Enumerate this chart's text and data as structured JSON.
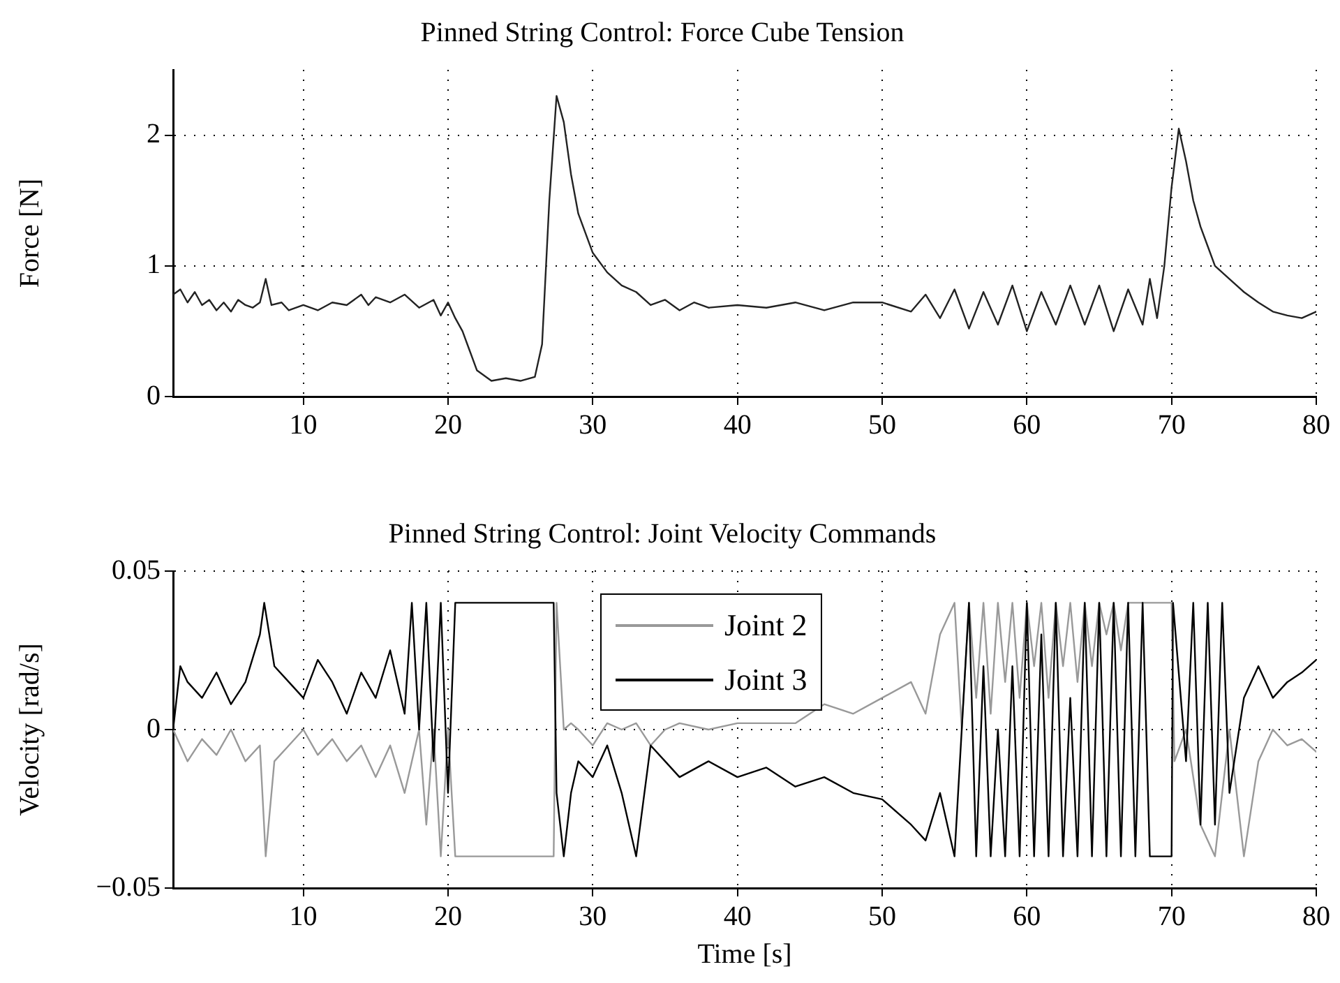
{
  "chart_data": [
    {
      "type": "line",
      "title": "Pinned String Control: Force Cube Tension",
      "ylabel": "Force [N]",
      "xlim": [
        1,
        80
      ],
      "xticks": [
        10,
        20,
        30,
        40,
        50,
        60,
        70,
        80
      ],
      "ylim": [
        0,
        2.5
      ],
      "yticks": [
        0,
        1,
        2
      ],
      "grid": true,
      "legend": false,
      "marker": "none",
      "line_style": "solid",
      "series": [
        {
          "color": "#222222",
          "x": [
            1,
            1.5,
            2,
            2.5,
            3,
            3.5,
            4,
            4.5,
            5,
            5.5,
            6,
            6.5,
            7,
            7.4,
            7.8,
            8.5,
            9,
            10,
            11,
            12,
            13,
            14,
            14.5,
            15,
            16,
            17,
            18,
            19,
            19.5,
            20,
            20.5,
            21,
            21.5,
            22,
            23,
            24,
            25,
            26,
            26.5,
            27,
            27.5,
            28,
            28.5,
            29,
            30,
            31,
            32,
            33,
            34,
            35,
            36,
            37,
            38,
            40,
            42,
            44,
            46,
            48,
            50,
            52,
            53,
            54,
            55,
            56,
            57,
            58,
            59,
            60,
            61,
            62,
            63,
            64,
            65,
            66,
            67,
            68,
            68.5,
            69,
            69.5,
            70,
            70.5,
            71,
            71.5,
            72,
            72.5,
            73,
            74,
            75,
            76,
            77,
            78,
            79,
            80
          ],
          "values": [
            0.78,
            0.82,
            0.72,
            0.8,
            0.7,
            0.74,
            0.66,
            0.72,
            0.65,
            0.74,
            0.7,
            0.68,
            0.72,
            0.9,
            0.7,
            0.72,
            0.66,
            0.7,
            0.66,
            0.72,
            0.7,
            0.78,
            0.7,
            0.76,
            0.72,
            0.78,
            0.68,
            0.74,
            0.62,
            0.72,
            0.6,
            0.5,
            0.35,
            0.2,
            0.12,
            0.14,
            0.12,
            0.15,
            0.4,
            1.5,
            2.3,
            2.1,
            1.7,
            1.4,
            1.1,
            0.95,
            0.85,
            0.8,
            0.7,
            0.74,
            0.66,
            0.72,
            0.68,
            0.7,
            0.68,
            0.72,
            0.66,
            0.72,
            0.72,
            0.65,
            0.78,
            0.6,
            0.82,
            0.52,
            0.8,
            0.55,
            0.85,
            0.5,
            0.8,
            0.55,
            0.85,
            0.55,
            0.85,
            0.5,
            0.82,
            0.55,
            0.9,
            0.6,
            1.0,
            1.6,
            2.05,
            1.8,
            1.5,
            1.3,
            1.15,
            1.0,
            0.9,
            0.8,
            0.72,
            0.65,
            0.62,
            0.6,
            0.65
          ]
        }
      ]
    },
    {
      "type": "line",
      "title": "Pinned String Control: Joint Velocity Commands",
      "xlabel": "Time [s]",
      "ylabel": "Velocity [rad/s]",
      "xlim": [
        1,
        80
      ],
      "xticks": [
        10,
        20,
        30,
        40,
        50,
        60,
        70,
        80
      ],
      "ylim": [
        -0.05,
        0.05
      ],
      "yticks": [
        {
          "value": -0.05,
          "label": "−0.05"
        },
        0,
        0.05
      ],
      "grid": true,
      "legend": "top",
      "marker": "none",
      "line_style": "solid",
      "series": [
        {
          "name": "Joint 2",
          "color": "#999999",
          "x": [
            1,
            2,
            3,
            4,
            5,
            6,
            7,
            7.4,
            8,
            9,
            10,
            11,
            12,
            13,
            14,
            15,
            16,
            17,
            18,
            18.5,
            19,
            19.5,
            20,
            20.5,
            21,
            27.3,
            27.5,
            28,
            28.5,
            29,
            30,
            31,
            32,
            33,
            34,
            35,
            36,
            38,
            40,
            42,
            44,
            46,
            48,
            50,
            52,
            53,
            54,
            55,
            55.5,
            56,
            56.5,
            57,
            57.5,
            58,
            58.5,
            59,
            59.5,
            60,
            60.5,
            61,
            61.5,
            62,
            62.5,
            63,
            63.5,
            64,
            64.5,
            65,
            65.5,
            66,
            66.5,
            67,
            70,
            70.2,
            71,
            72,
            73,
            74,
            75,
            76,
            77,
            78,
            79,
            80
          ],
          "values": [
            0,
            -0.01,
            -0.003,
            -0.008,
            0,
            -0.01,
            -0.005,
            -0.04,
            -0.01,
            -0.005,
            0,
            -0.008,
            -0.003,
            -0.01,
            -0.005,
            -0.015,
            -0.005,
            -0.02,
            0,
            -0.03,
            0,
            -0.04,
            0,
            -0.04,
            -0.04,
            -0.04,
            0.04,
            0,
            0.002,
            0,
            -0.005,
            0.002,
            0,
            0.002,
            -0.005,
            0,
            0.002,
            0,
            0.002,
            0.002,
            0.002,
            0.008,
            0.005,
            0.01,
            0.015,
            0.005,
            0.03,
            0.04,
            0,
            0.04,
            0.01,
            0.04,
            0.005,
            0.04,
            0.015,
            0.04,
            0.01,
            0.04,
            0.02,
            0.04,
            0.01,
            0.04,
            0.02,
            0.04,
            0.015,
            0.04,
            0.02,
            0.04,
            0.03,
            0.04,
            0.025,
            0.04,
            0.04,
            -0.01,
            0,
            -0.03,
            -0.04,
            0,
            -0.04,
            -0.01,
            0,
            -0.005,
            -0.003,
            -0.007
          ]
        },
        {
          "name": "Joint 3",
          "color": "#000000",
          "x": [
            1,
            1.5,
            2,
            3,
            4,
            5,
            6,
            7,
            7.3,
            8,
            9,
            10,
            11,
            12,
            13,
            14,
            15,
            16,
            17,
            17.5,
            18,
            18.5,
            19,
            19.5,
            20,
            20.5,
            21,
            27.3,
            27.5,
            28,
            28.5,
            29,
            30,
            31,
            32,
            33,
            34,
            35,
            36,
            38,
            40,
            42,
            44,
            46,
            48,
            50,
            52,
            53,
            54,
            55,
            56,
            56.5,
            57,
            57.5,
            58,
            58.5,
            59,
            59.5,
            60,
            60.5,
            61,
            61.5,
            62,
            62.5,
            63,
            63.5,
            64,
            64.5,
            65,
            65.5,
            66,
            66.5,
            67,
            67.5,
            68,
            68.5,
            70,
            70.1,
            71,
            71.5,
            72,
            72.5,
            73,
            73.5,
            74,
            75,
            76,
            77,
            78,
            79,
            80
          ],
          "values": [
            0,
            0.02,
            0.015,
            0.01,
            0.018,
            0.008,
            0.015,
            0.03,
            0.04,
            0.02,
            0.015,
            0.01,
            0.022,
            0.015,
            0.005,
            0.018,
            0.01,
            0.025,
            0.005,
            0.04,
            0,
            0.04,
            -0.01,
            0.04,
            -0.02,
            0.04,
            0.04,
            0.04,
            -0.02,
            -0.04,
            -0.02,
            -0.01,
            -0.015,
            -0.005,
            -0.02,
            -0.04,
            -0.005,
            -0.01,
            -0.015,
            -0.01,
            -0.015,
            -0.012,
            -0.018,
            -0.015,
            -0.02,
            -0.022,
            -0.03,
            -0.035,
            -0.02,
            -0.04,
            0.04,
            -0.04,
            0.02,
            -0.04,
            0,
            -0.04,
            0.02,
            -0.04,
            0.04,
            -0.04,
            0.03,
            -0.04,
            0.04,
            -0.04,
            0.01,
            -0.04,
            0.04,
            -0.04,
            0.04,
            -0.04,
            0.04,
            -0.04,
            0.04,
            -0.04,
            0.04,
            -0.04,
            -0.04,
            0.04,
            -0.01,
            0.04,
            -0.03,
            0.04,
            -0.03,
            0.04,
            -0.02,
            0.01,
            0.02,
            0.01,
            0.015,
            0.018,
            0.022
          ]
        }
      ]
    }
  ]
}
